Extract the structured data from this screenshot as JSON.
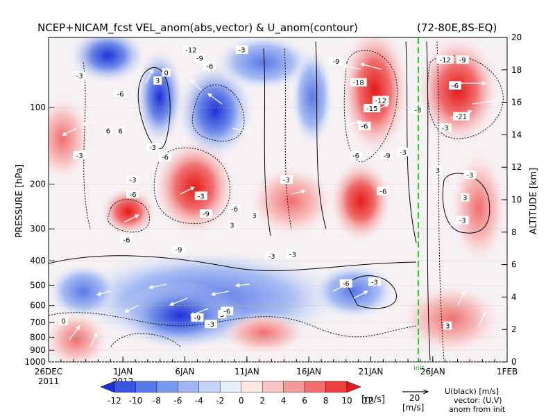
{
  "chart_data": {
    "type": "heatmap",
    "title": "NCEP+NICAM_fcst VEL_anom(abs,vector) & U_anom(contour)",
    "region": "(72-80E,8S-EQ)",
    "ylabel_left": "PRESSURE [hPa]",
    "ylabel_right": "ALTITUDE [km]",
    "x_ticks": [
      "26DEC",
      "1JAN",
      "6JAN",
      "11JAN",
      "16JAN",
      "21JAN",
      "26JAN",
      "1FEB"
    ],
    "x_year_labels": [
      "2011",
      "2012"
    ],
    "pressure_ticks": [
      "100",
      "200",
      "300",
      "400",
      "500",
      "600",
      "700",
      "800",
      "900",
      "1000"
    ],
    "altitude_ticks": [
      "0",
      "2",
      "4",
      "6",
      "8",
      "10",
      "12",
      "14",
      "16",
      "18",
      "20"
    ],
    "colorbar": {
      "ticks": [
        "-12",
        "-10",
        "-8",
        "-6",
        "-4",
        "-2",
        "0",
        "2",
        "4",
        "6",
        "8",
        "10",
        "12"
      ],
      "unit": "[m/s]",
      "colors": [
        "#2030d8",
        "#3c55e0",
        "#5a78e8",
        "#7a98ee",
        "#9fb6f3",
        "#c6d3f8",
        "#e8eefc",
        "#fde6e6",
        "#f8c4c4",
        "#f59a9a",
        "#f06e6e",
        "#ec4040",
        "#e61a1a"
      ]
    },
    "vector_ref": {
      "value": "20",
      "unit": "[m/s]"
    },
    "legend_text": [
      "U(black) [m/s]",
      "vector: (U,V)",
      "anom from init"
    ],
    "init_marker_label": "init",
    "contour_labels": [
      {
        "v": "-3",
        "d": 2.5,
        "z": 17.6
      },
      {
        "v": "-6",
        "d": 5.8,
        "z": 16.5
      },
      {
        "v": "6",
        "d": 4.8,
        "z": 14.2
      },
      {
        "v": "6",
        "d": 5.8,
        "z": 14.2
      },
      {
        "v": "-12",
        "d": 11.5,
        "z": 19.2
      },
      {
        "v": "-9",
        "d": 12.2,
        "z": 18.7
      },
      {
        "v": "-6",
        "d": 13.0,
        "z": 18.2
      },
      {
        "v": "0",
        "d": 9.5,
        "z": 17.8
      },
      {
        "v": "3",
        "d": 8.8,
        "z": 17.3
      },
      {
        "v": "-3",
        "d": 15.6,
        "z": 19.2
      },
      {
        "v": "-3",
        "d": 8.4,
        "z": 13.2
      },
      {
        "v": "-6",
        "d": 9.4,
        "z": 12.6
      },
      {
        "v": "-3",
        "d": 2.5,
        "z": 12.7
      },
      {
        "v": "-3",
        "d": 6.8,
        "z": 11.2
      },
      {
        "v": "-6",
        "d": 6.8,
        "z": 10.3
      },
      {
        "v": "-3",
        "d": 12.3,
        "z": 10.2
      },
      {
        "v": "-9",
        "d": 12.7,
        "z": 9.1
      },
      {
        "v": "-6",
        "d": 15.0,
        "z": 9.4
      },
      {
        "v": "-3",
        "d": 19.2,
        "z": 11.2
      },
      {
        "v": "3",
        "d": 16.6,
        "z": 9.0
      },
      {
        "v": "3",
        "d": 14.8,
        "z": 8.4
      },
      {
        "v": "-6",
        "d": 6.3,
        "z": 7.5
      },
      {
        "v": "-9",
        "d": 10.5,
        "z": 6.9
      },
      {
        "v": "-3",
        "d": 18.0,
        "z": 6.5
      },
      {
        "v": "-3",
        "d": 19.7,
        "z": 6.6
      },
      {
        "v": "-9",
        "d": 23.2,
        "z": 18.5
      },
      {
        "v": "-18",
        "d": 25.0,
        "z": 17.2
      },
      {
        "v": "-12",
        "d": 26.8,
        "z": 16.1
      },
      {
        "v": "-15",
        "d": 26.1,
        "z": 15.6
      },
      {
        "v": "-6",
        "d": 25.5,
        "z": 14.5
      },
      {
        "v": "-9",
        "d": 27.3,
        "z": 12.7
      },
      {
        "v": "-6",
        "d": 24.8,
        "z": 12.7
      },
      {
        "v": "-6",
        "d": 27.0,
        "z": 10.5
      },
      {
        "v": "-3",
        "d": 28.6,
        "z": 12.9
      },
      {
        "v": "-6",
        "d": 24.0,
        "z": 4.8
      },
      {
        "v": "-3",
        "d": 26.3,
        "z": 4.9
      },
      {
        "v": "-3",
        "d": 29.8,
        "z": 15.5
      },
      {
        "v": "-12",
        "d": 32.0,
        "z": 18.6
      },
      {
        "v": "-9",
        "d": 33.4,
        "z": 18.6
      },
      {
        "v": "-6",
        "d": 32.8,
        "z": 17.0
      },
      {
        "v": "-21",
        "d": 33.3,
        "z": 15.1
      },
      {
        "v": "-3",
        "d": 32.0,
        "z": 14.4
      },
      {
        "v": "-3",
        "d": 34.0,
        "z": 11.5
      },
      {
        "v": "3",
        "d": 31.4,
        "z": 11.8
      },
      {
        "v": "3",
        "d": 33.6,
        "z": 10.1
      },
      {
        "v": "-3",
        "d": 33.4,
        "z": 8.7
      },
      {
        "v": "3",
        "d": 32.2,
        "z": 2.2
      },
      {
        "v": "3",
        "d": 14.0,
        "z": 2.9
      },
      {
        "v": "-6",
        "d": 14.4,
        "z": 3.1
      },
      {
        "v": "-9",
        "d": 12.0,
        "z": 2.7
      },
      {
        "v": "-3",
        "d": 13.1,
        "z": 2.3
      },
      {
        "v": "0",
        "d": 1.2,
        "z": 2.5
      }
    ]
  }
}
